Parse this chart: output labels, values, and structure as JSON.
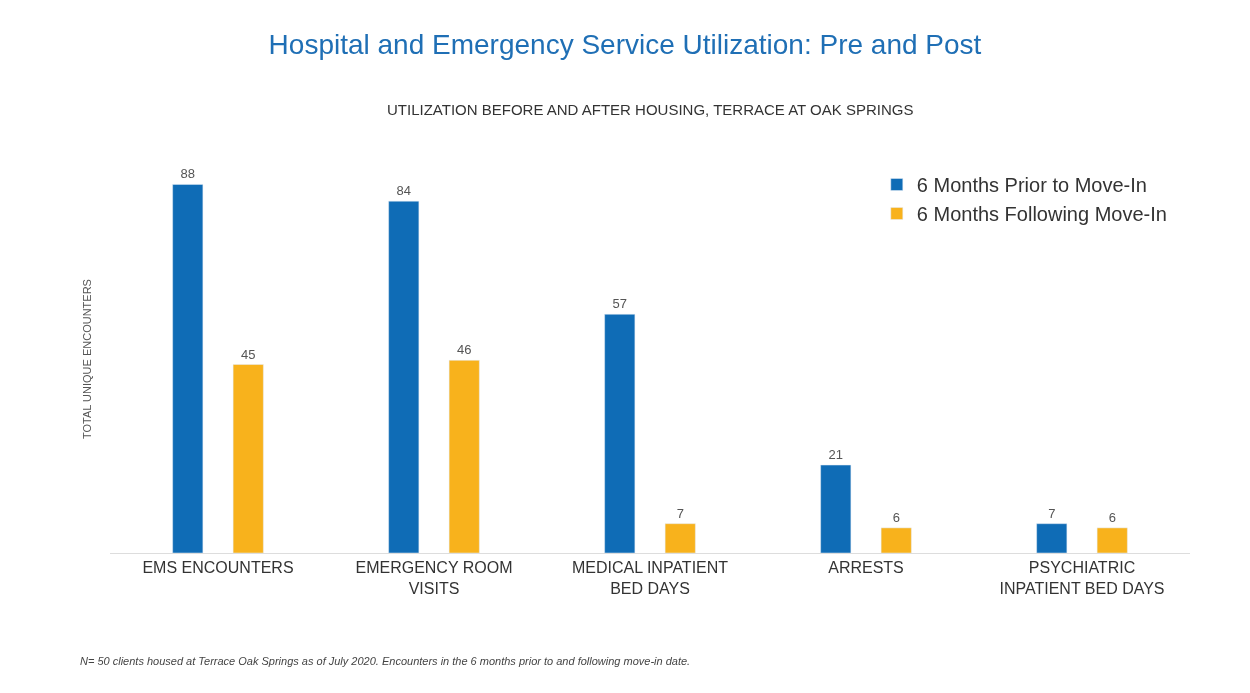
{
  "chart_data": {
    "type": "bar",
    "title": "Hospital and Emergency Service Utilization: Pre and Post",
    "subtitle": "UTILIZATION BEFORE AND AFTER HOUSING, TERRACE AT OAK SPRINGS",
    "ylabel": "TOTAL UNIQUE ENCOUNTERS",
    "categories": [
      "EMS ENCOUNTERS",
      "EMERGENCY ROOM\nVISITS",
      "MEDICAL INPATIENT\nBED DAYS",
      "ARRESTS",
      "PSYCHIATRIC\nINPATIENT BED DAYS"
    ],
    "series": [
      {
        "name": "6 Months Prior to Move-In",
        "color": "#0f6cb6",
        "values": [
          88,
          84,
          57,
          21,
          7
        ]
      },
      {
        "name": "6 Months Following Move-In",
        "color": "#f8b21c",
        "values": [
          45,
          46,
          7,
          6,
          6
        ]
      }
    ],
    "data_labels": true,
    "legend": "top right",
    "annotations": [
      "N= 50 clients housed at Terrace Oak Springs as of July 2020. Encounters in the 6 months prior to and following move-in date."
    ]
  }
}
